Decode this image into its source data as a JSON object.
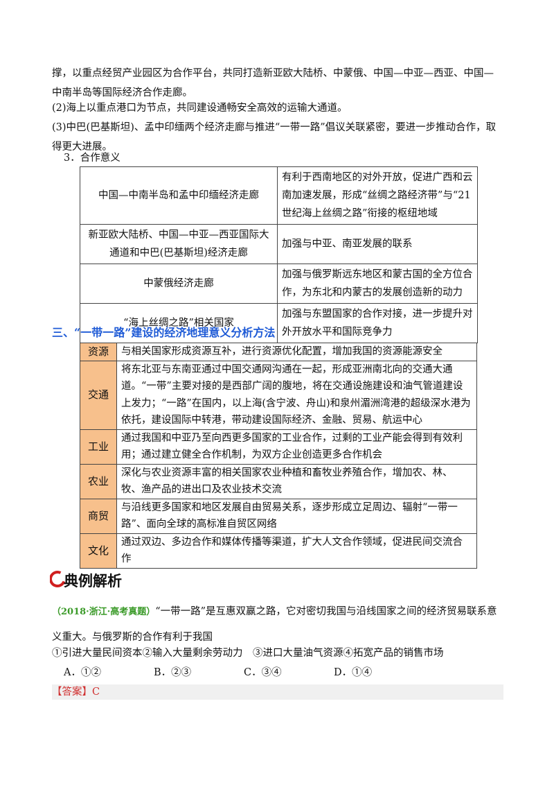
{
  "body": {
    "paragraphs": [
      "撑，以重点经贸产业园区为合作平台，共同打造新亚欧大陆桥、中蒙俄、中国—中亚—西亚、中国—中南半岛等国际经济合作走廊。",
      "(2)海上以重点港口为节点，共同建设通畅安全高效的运输大通道。",
      "(3)中巴(巴基斯坦)、孟中印缅两个经济走廊与推进“一带一路”倡议关联紧密，要进一步推动合作，取得更大进展。"
    ],
    "subheading": "3．合作意义",
    "table1": {
      "rows": [
        [
          "中国—中南半岛和孟中印缅经济走廊",
          "有利于西南地区的对外开放，促进广西和云南加速发展，形成“丝绸之路经济带”与“21世纪海上丝绸之路”衔接的枢纽地域"
        ],
        [
          "新亚欧大陆桥、中国—中亚—西亚国际大通道和中巴(巴基斯坦)经济走廊",
          "加强与中亚、南亚发展的联系"
        ],
        [
          "中蒙俄经济走廊",
          "加强与俄罗斯远东地区和蒙古国的全方位合作，为东北和内蒙古的发展创造新的动力"
        ],
        [
          "“海上丝绸之路”相关国家",
          "加强与东盟国家的合作对接，进一步提升对外开放水平和国际竞争力"
        ]
      ]
    },
    "section_heading": "三、“一带一路”建设的经济地理意义分析方法",
    "table2": {
      "rows": [
        [
          "资源",
          "与相关国家形成资源互补，进行资源优化配置，增加我国的资源能源安全"
        ],
        [
          "交通",
          "将东北亚与东南亚通过中国交通网沟通在一起，形成亚洲南北向的交通大通道。“一带”主要对接的是西部广阔的腹地，将在交通设施建设和油气管道建设上发力；“一路”在国内，以上海(含宁波、舟山)和泉州湄洲湾港的超级深水港为依托，建设国际中转港，带动建设国际经济、金融、贸易、航运中心"
        ],
        [
          "工业",
          "通过我国和中亚乃至向西更多国家的工业合作，过剩的工业产能会得到有效利用；通过建立健全合作机制，为双方企业创造更多合作机会"
        ],
        [
          "农业",
          "深化与农业资源丰富的相关国家农业种植和畜牧业养殖合作，增加农、林、牧、渔产品的进出口及农业技术交流"
        ],
        [
          "商贸",
          "与沿线更多国家和地区发展自由贸易关系，逐步形成立足周边、辐射“一带一路”、面向全球的高标准自贸区网络"
        ],
        [
          "文化",
          "通过双边、多边合作和媒体传播等渠道，扩大人文合作领域，促进民间交流合作"
        ]
      ]
    },
    "example": {
      "heading": "典例解析",
      "source": "（2018·浙江·高考真题）",
      "stem": "“一带一路”是互惠双赢之路，它对密切我国与沿线国家之间的经济贸易联系意义重大。与俄罗斯的合作有利于我国",
      "statements": "①引进大量民间资本②输入大量剩余劳动力　③进口大量油气资源④拓宽产品的销售市场",
      "options": [
        "A．①②",
        "B．②③",
        "C．③④",
        "D．①④"
      ],
      "answer_label": "【答案】",
      "answer": "C"
    }
  }
}
